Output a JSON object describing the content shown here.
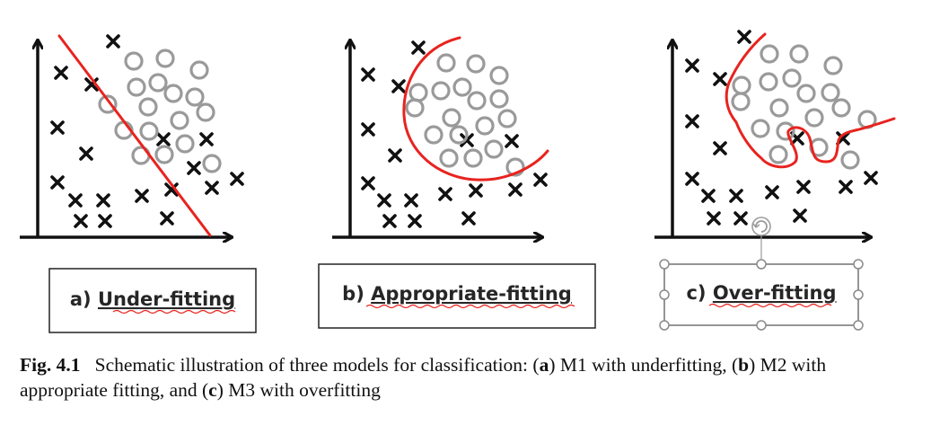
{
  "panels": [
    {
      "prefix": "a) ",
      "name": "Under-fitting"
    },
    {
      "prefix": "b) ",
      "name": "Appropriate-fitting"
    },
    {
      "prefix": "c) ",
      "name": "Over-fitting"
    }
  ],
  "caption": {
    "label": "Fig. 4.1",
    "text_1": "Schematic illustration of three models for classification: (",
    "a": "a",
    "text_2": ") M1 with underfitting, (",
    "b": "b",
    "text_3": ") M2 with appropriate fitting, and (",
    "c": "c",
    "text_4": ") M3 with overfitting"
  },
  "colors": {
    "boundary": "#e8231e",
    "axis": "#111111",
    "cross": "#111111",
    "circle": "#9a9a9a",
    "squiggle": "#e8231e",
    "selection": "#8a8a8a"
  }
}
